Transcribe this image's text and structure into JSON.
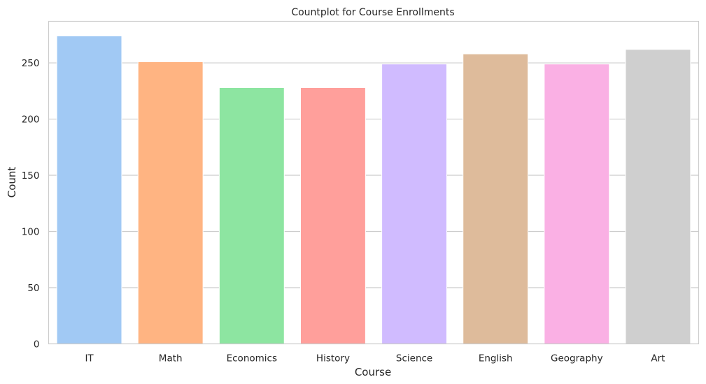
{
  "chart_data": {
    "type": "bar",
    "title": "Countplot for Course Enrollments",
    "xlabel": "Course",
    "ylabel": "Count",
    "categories": [
      "IT",
      "Math",
      "Economics",
      "History",
      "Science",
      "English",
      "Geography",
      "Art"
    ],
    "values": [
      274,
      251,
      228,
      228,
      249,
      258,
      249,
      262
    ],
    "ylim": [
      0,
      287
    ],
    "yticks": [
      0,
      50,
      100,
      150,
      200,
      250
    ],
    "grid": "horizontal",
    "legend": "none",
    "colors": [
      "#a1c9f4",
      "#ffb482",
      "#8de5a1",
      "#ff9f9b",
      "#d0bbff",
      "#debb9b",
      "#fab0e4",
      "#cfcfcf"
    ],
    "grid_color": "#cccccc",
    "frame_color": "#cccccc"
  }
}
